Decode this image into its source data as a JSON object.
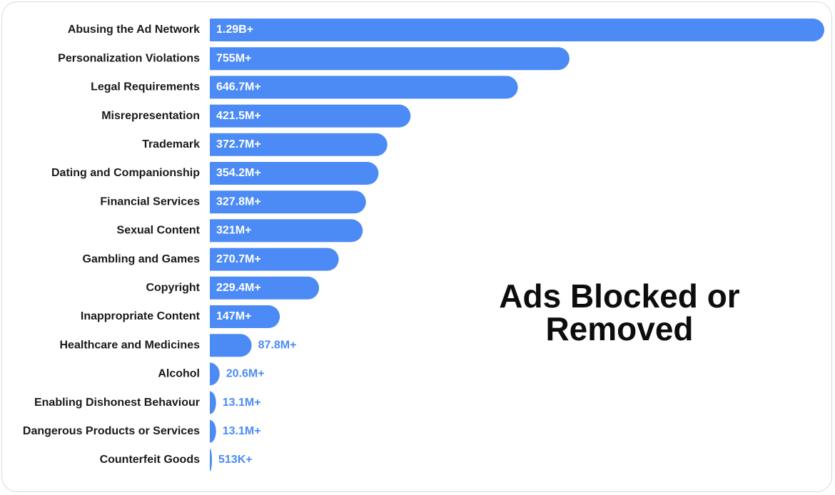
{
  "chart_data": {
    "type": "bar",
    "orientation": "horizontal",
    "title_lines": [
      "Ads Blocked or",
      "Removed"
    ],
    "categories": [
      "Abusing the Ad Network",
      "Personalization Violations",
      "Legal Requirements",
      "Misrepresentation",
      "Trademark",
      "Dating and Companionship",
      "Financial Services",
      "Sexual Content",
      "Gambling and Games",
      "Copyright",
      "Inappropriate Content",
      "Healthcare and Medicines",
      "Alcohol",
      "Enabling Dishonest Behaviour",
      "Dangerous Products or Services",
      "Counterfeit Goods"
    ],
    "values": [
      1290000000,
      755000000,
      646700000,
      421500000,
      372700000,
      354200000,
      327800000,
      321000000,
      270700000,
      229400000,
      147000000,
      87800000,
      20600000,
      13100000,
      13100000,
      513000
    ],
    "value_labels": [
      "1.29B+",
      "755M+",
      "646.7M+",
      "421.5M+",
      "372.7M+",
      "354.2M+",
      "327.8M+",
      "321M+",
      "270.7M+",
      "229.4M+",
      "147M+",
      "87.8M+",
      "20.6M+",
      "13.1M+",
      "13.1M+",
      "513K+"
    ],
    "grid": false,
    "legend": "none",
    "colors": {
      "bar": "#4c8bf5",
      "label_inside": "#ffffff",
      "label_outside": "#4c8bf5",
      "category_text": "#1a1a1a",
      "title_text": "#0d0d0d"
    }
  }
}
